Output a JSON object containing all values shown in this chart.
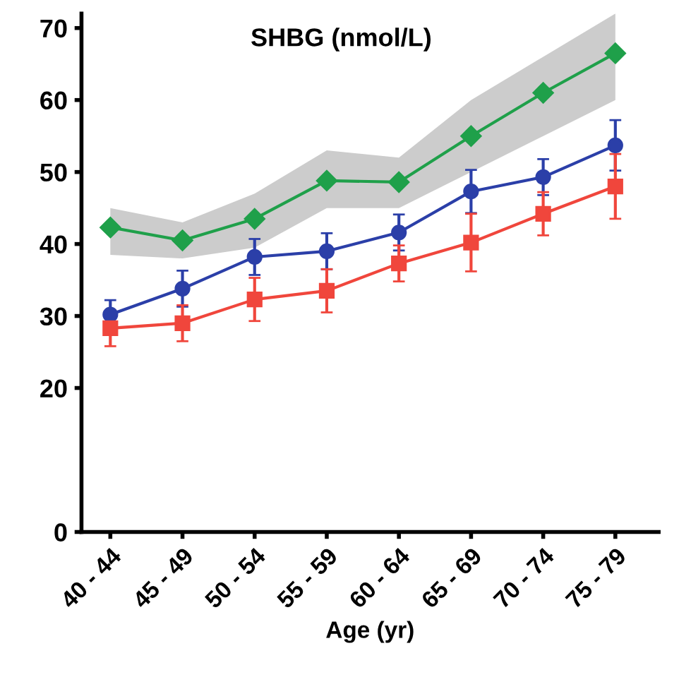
{
  "chart_data": {
    "type": "line",
    "title": "SHBG (nmol/L)",
    "xlabel": "Age (yr)",
    "categories": [
      "40 - 44",
      "45 - 49",
      "50 - 54",
      "55 - 59",
      "60 - 64",
      "65 - 69",
      "70 - 74",
      "75 - 79"
    ],
    "series": [
      {
        "color": "#1fa04a",
        "marker": "diamond",
        "values": [
          42.3,
          40.5,
          43.5,
          48.8,
          48.6,
          55,
          61,
          66.5
        ],
        "lower": [
          38.5,
          38,
          39.5,
          45,
          45,
          50,
          55,
          60
        ],
        "upper": [
          45,
          43,
          47,
          53,
          52,
          60,
          66,
          72
        ]
      },
      {
        "color": "#2b3fa8",
        "marker": "circle",
        "values": [
          30.2,
          33.8,
          38.2,
          39,
          41.6,
          47.3,
          49.3,
          53.7
        ],
        "errors": [
          2,
          2.5,
          2.5,
          2.5,
          2.5,
          3,
          2.5,
          3.5
        ]
      },
      {
        "color": "#f0463c",
        "marker": "square",
        "values": [
          28.3,
          29,
          32.3,
          33.5,
          37.3,
          40.2,
          44.2,
          48
        ],
        "errors": [
          2.5,
          2.5,
          3,
          3,
          2.5,
          4,
          3,
          4.5
        ]
      }
    ],
    "ylim": [
      0,
      72
    ],
    "yticks": [
      0,
      20,
      30,
      40,
      50,
      60,
      70
    ],
    "grid": false,
    "legend": false
  }
}
